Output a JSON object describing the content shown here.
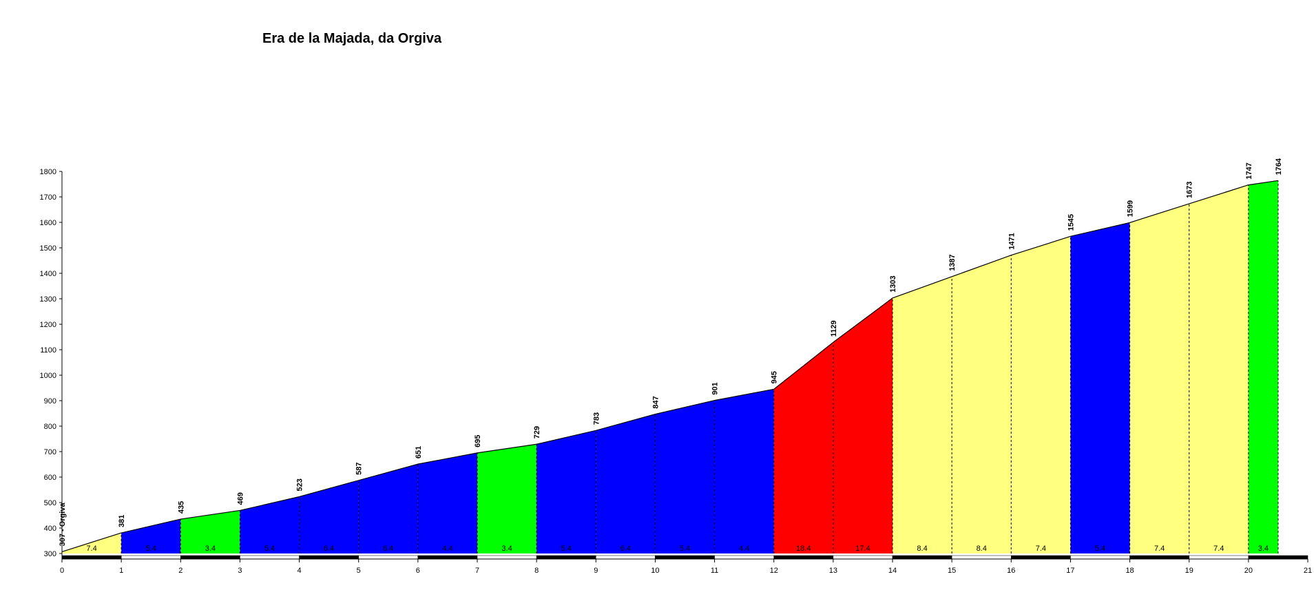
{
  "chart_data": {
    "type": "area",
    "title": "Era de la Majada, da Orgiva",
    "x": [
      0,
      1,
      2,
      3,
      4,
      5,
      6,
      7,
      8,
      9,
      10,
      11,
      12,
      13,
      14,
      15,
      16,
      17,
      18,
      19,
      20,
      20.5
    ],
    "series": [
      {
        "values": [
          307,
          381,
          435,
          469,
          523,
          587,
          651,
          695,
          729,
          783,
          847,
          901,
          945,
          1129,
          1303,
          1387,
          1471,
          1545,
          1599,
          1673,
          1747,
          1764
        ],
        "value_labels": [
          "307 - Orgiva",
          "381",
          "435",
          "469",
          "523",
          "587",
          "651",
          "695",
          "729",
          "783",
          "847",
          "901",
          "945",
          "1129",
          "1303",
          "1387",
          "1471",
          "1545",
          "1599",
          "1673",
          "1747",
          "1764"
        ]
      }
    ],
    "gradients": [
      7.4,
      5.4,
      3.4,
      5.4,
      6.4,
      6.4,
      4.4,
      3.4,
      5.4,
      6.4,
      5.4,
      4.4,
      18.4,
      17.4,
      8.4,
      8.4,
      7.4,
      5.4,
      7.4,
      7.4,
      3.4
    ],
    "segment_colors": [
      "#ffff80",
      "#0000ff",
      "#00ff00",
      "#0000ff",
      "#0000ff",
      "#0000ff",
      "#0000ff",
      "#00ff00",
      "#0000ff",
      "#0000ff",
      "#0000ff",
      "#0000ff",
      "#ff0000",
      "#ff0000",
      "#ffff80",
      "#ffff80",
      "#ffff80",
      "#0000ff",
      "#ffff80",
      "#ffff80",
      "#00ff00"
    ],
    "xlim": [
      0,
      21
    ],
    "xticks": [
      0,
      1,
      2,
      3,
      4,
      5,
      6,
      7,
      8,
      9,
      10,
      11,
      12,
      13,
      14,
      15,
      16,
      17,
      18,
      19,
      20,
      21
    ],
    "ylim": [
      300,
      1800
    ],
    "yticks": [
      300,
      400,
      500,
      600,
      700,
      800,
      900,
      1000,
      1100,
      1200,
      1300,
      1400,
      1500,
      1600,
      1700,
      1800
    ]
  }
}
